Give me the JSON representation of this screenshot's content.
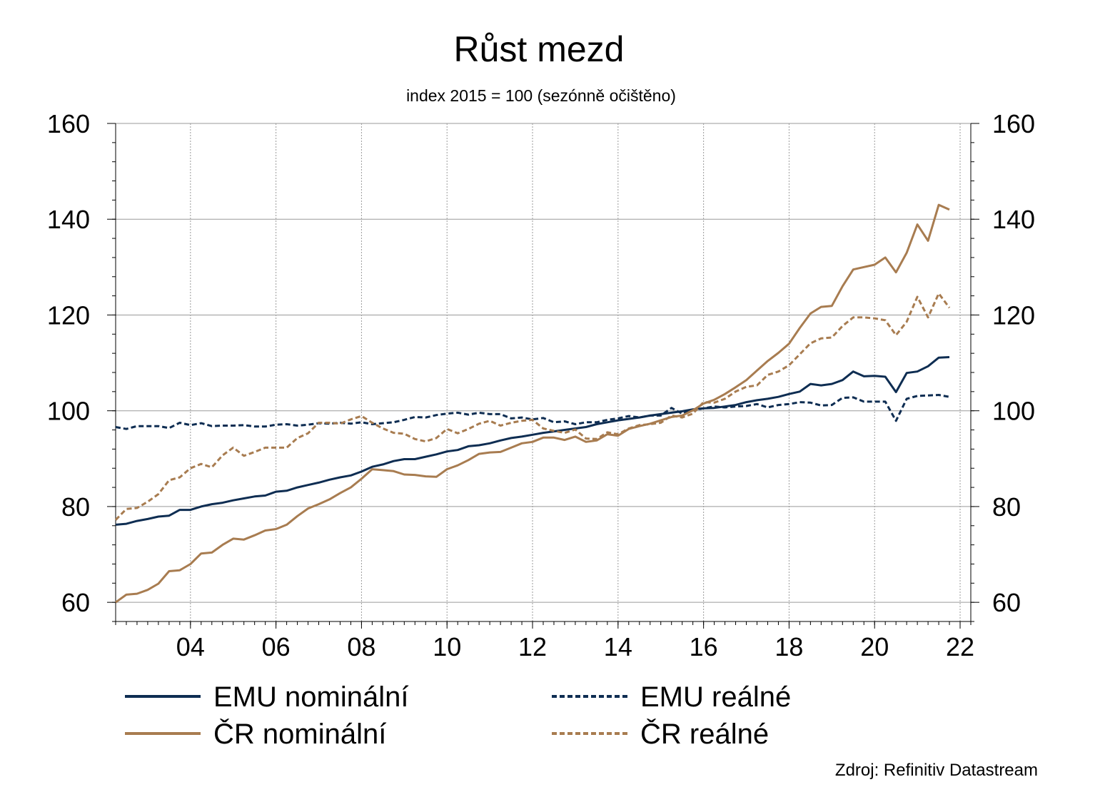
{
  "chart_data": {
    "type": "line",
    "title": "Růst mezd",
    "subtitle": "index 2015 = 100 (sezónně očištěno)",
    "source": "Zdroj: Refinitiv Datastream",
    "xlabel": "",
    "ylabel": "",
    "x_range": [
      2002.25,
      2022.25
    ],
    "x_ticks": [
      {
        "value": 2004,
        "label": "04"
      },
      {
        "value": 2006,
        "label": "06"
      },
      {
        "value": 2008,
        "label": "08"
      },
      {
        "value": 2010,
        "label": "10"
      },
      {
        "value": 2012,
        "label": "12"
      },
      {
        "value": 2014,
        "label": "14"
      },
      {
        "value": 2016,
        "label": "16"
      },
      {
        "value": 2018,
        "label": "18"
      },
      {
        "value": 2020,
        "label": "20"
      },
      {
        "value": 2022,
        "label": "22"
      }
    ],
    "ylim": [
      56,
      160
    ],
    "y_ticks": [
      60,
      80,
      100,
      120,
      140,
      160
    ],
    "y_ticks_both_sides": true,
    "grid": true,
    "legend_position": "bottom",
    "x_start": 2002.25,
    "x_step": 0.25,
    "series": [
      {
        "name": "EMU nominální",
        "color": "#0e2d52",
        "style": "solid",
        "values": [
          76.2,
          76.4,
          77.0,
          77.4,
          77.9,
          78.1,
          79.3,
          79.3,
          80.0,
          80.5,
          80.8,
          81.3,
          81.7,
          82.1,
          82.3,
          83.1,
          83.3,
          84.0,
          84.5,
          85.0,
          85.6,
          86.1,
          86.5,
          87.3,
          88.3,
          88.8,
          89.5,
          89.9,
          89.9,
          90.4,
          90.9,
          91.5,
          91.8,
          92.6,
          92.8,
          93.2,
          93.8,
          94.3,
          94.6,
          95.0,
          95.4,
          95.7,
          96.0,
          96.3,
          96.6,
          97.2,
          97.6,
          98.0,
          98.3,
          98.6,
          99.0,
          99.3,
          99.6,
          99.9,
          100.3,
          100.5,
          100.6,
          100.9,
          101.2,
          101.8,
          102.2,
          102.5,
          102.9,
          103.5,
          104.0,
          105.6,
          105.3,
          105.6,
          106.4,
          108.2,
          107.2,
          107.3,
          107.1,
          103.9,
          107.9,
          108.2,
          109.3,
          111.1,
          111.2
        ],
        "legend_label": "EMU nominální"
      },
      {
        "name": "EMU reálné",
        "color": "#0e2d52",
        "style": "dashed",
        "values": [
          96.6,
          96.2,
          96.8,
          96.8,
          96.8,
          96.4,
          97.5,
          97.0,
          97.4,
          96.8,
          96.9,
          96.9,
          97.0,
          96.7,
          96.7,
          97.1,
          97.2,
          96.9,
          97.1,
          97.4,
          97.3,
          97.5,
          97.3,
          97.6,
          97.2,
          97.4,
          97.6,
          98.1,
          98.7,
          98.6,
          99.1,
          99.4,
          99.6,
          99.2,
          99.6,
          99.3,
          99.3,
          98.4,
          98.6,
          98.2,
          98.5,
          97.6,
          97.8,
          97.2,
          97.6,
          97.6,
          98.1,
          98.4,
          98.9,
          98.6,
          99.0,
          99.0,
          100.6,
          99.4,
          100.1,
          100.5,
          100.9,
          100.7,
          100.9,
          101.0,
          101.4,
          100.7,
          101.2,
          101.4,
          101.8,
          101.7,
          101.1,
          101.2,
          102.7,
          102.8,
          101.9,
          101.9,
          101.9,
          97.9,
          102.5,
          103.1,
          103.2,
          103.3,
          102.9
        ],
        "legend_label": "EMU reálné"
      },
      {
        "name": "ČR nominální",
        "color": "#a87c50",
        "style": "solid",
        "values": [
          60.0,
          61.6,
          61.8,
          62.6,
          63.9,
          66.5,
          66.7,
          68.0,
          70.2,
          70.4,
          72.0,
          73.3,
          73.1,
          74.0,
          75.0,
          75.3,
          76.2,
          78.0,
          79.6,
          80.5,
          81.5,
          82.8,
          84.0,
          85.8,
          87.8,
          87.6,
          87.4,
          86.7,
          86.6,
          86.3,
          86.2,
          87.8,
          88.6,
          89.7,
          91.0,
          91.3,
          91.4,
          92.3,
          93.2,
          93.5,
          94.4,
          94.4,
          93.9,
          94.6,
          93.5,
          93.8,
          95.1,
          94.8,
          96.2,
          96.8,
          97.3,
          98.0,
          98.7,
          99.0,
          100.1,
          101.5,
          102.3,
          103.5,
          104.9,
          106.4,
          108.4,
          110.4,
          112.1,
          114.0,
          117.3,
          120.3,
          121.7,
          121.9,
          126.0,
          129.5,
          130.0,
          130.5,
          132.0,
          128.9,
          133.0,
          138.9,
          135.5,
          143.0,
          142.0
        ],
        "legend_label": "ČR nominální"
      },
      {
        "name": "ČR reálné",
        "color": "#a87c50",
        "style": "dashed",
        "values": [
          77.2,
          79.5,
          79.7,
          81.0,
          82.6,
          85.5,
          86.1,
          88.0,
          88.9,
          88.2,
          90.7,
          92.3,
          90.6,
          91.4,
          92.3,
          92.3,
          92.3,
          94.3,
          95.3,
          97.5,
          97.5,
          97.3,
          98.2,
          98.9,
          97.5,
          96.3,
          95.4,
          95.2,
          94.1,
          93.6,
          94.3,
          96.2,
          95.3,
          96.2,
          97.3,
          97.9,
          96.9,
          97.5,
          97.9,
          98.1,
          96.3,
          95.8,
          95.4,
          96.1,
          94.2,
          94.1,
          95.5,
          95.1,
          96.3,
          97.0,
          97.2,
          97.5,
          99.0,
          98.6,
          99.4,
          101.8,
          101.7,
          102.5,
          104.0,
          105.0,
          105.3,
          107.5,
          108.2,
          109.5,
          111.8,
          114.1,
          115.1,
          115.3,
          117.7,
          119.5,
          119.5,
          119.3,
          118.9,
          115.8,
          118.6,
          123.8,
          119.5,
          124.5,
          121.5
        ],
        "legend_label": "ČR reálné"
      }
    ]
  }
}
